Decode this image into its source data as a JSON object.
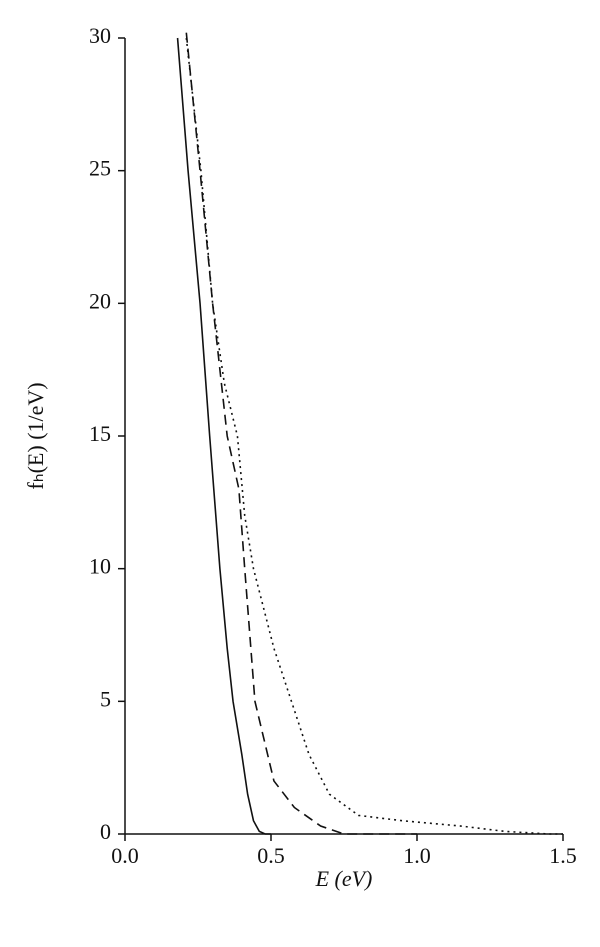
{
  "chart_data": {
    "type": "line",
    "xlabel": "E (eV)",
    "ylabel": "fₕ(E) (1/eV)",
    "xlim": [
      0,
      1.5
    ],
    "ylim": [
      0,
      30
    ],
    "xticks": [
      {
        "value": 0,
        "label": "0.0"
      },
      0.5,
      {
        "value": 1,
        "label": "1.0"
      },
      1.5
    ],
    "yticks": [
      0,
      5,
      10,
      15,
      20,
      25,
      30
    ],
    "series": [
      {
        "color": "#111111",
        "dash": "solid",
        "x": [
          0.18,
          0.216,
          0.257,
          0.29,
          0.325,
          0.35,
          0.37,
          0.4,
          0.42,
          0.44,
          0.46,
          0.48,
          0.5
        ],
        "values": [
          30,
          25,
          20,
          15,
          10,
          7,
          5,
          3,
          1.5,
          0.5,
          0.1,
          0,
          0
        ]
      },
      {
        "color": "#111111",
        "dash": "dashed",
        "x": [
          0.21,
          0.257,
          0.3,
          0.35,
          0.37,
          0.39,
          0.41,
          0.445,
          0.51,
          0.58,
          0.67,
          0.75,
          1.0
        ],
        "values": [
          30.2,
          25,
          20,
          15,
          14,
          13,
          10,
          5,
          2,
          1,
          0.3,
          0,
          0
        ]
      },
      {
        "color": "#111111",
        "dash": "dotted",
        "x": [
          0.21,
          0.26,
          0.3,
          0.34,
          0.385,
          0.41,
          0.44,
          0.51,
          0.57,
          0.63,
          0.7,
          0.8,
          0.95,
          1.15,
          1.3,
          1.45,
          1.5
        ],
        "values": [
          30,
          25,
          20,
          17,
          15,
          12,
          10,
          7,
          5,
          3,
          1.5,
          0.7,
          0.5,
          0.3,
          0.1,
          0,
          0
        ]
      }
    ]
  }
}
